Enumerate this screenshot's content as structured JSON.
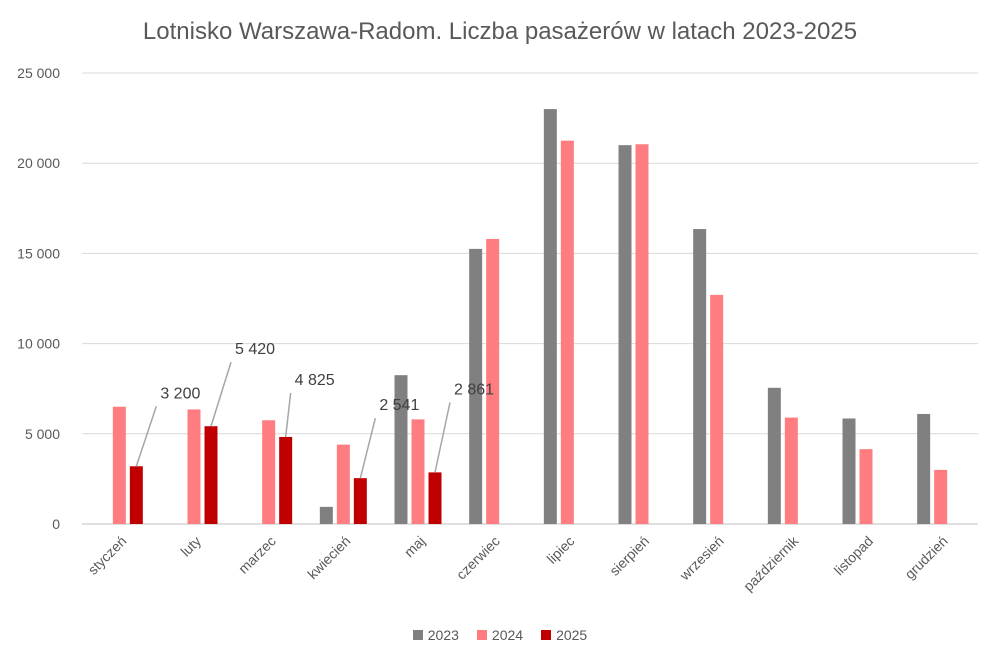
{
  "chart_data": {
    "type": "bar",
    "title": "Lotnisko Warszawa-Radom. Liczba pasażerów w latach 2023-2025",
    "xlabel": "",
    "ylabel": "",
    "ylim": [
      0,
      25000
    ],
    "yticks": [
      0,
      5000,
      10000,
      15000,
      20000,
      25000
    ],
    "ytick_labels": [
      "0",
      "5 000",
      "10 000",
      "15 000",
      "20 000",
      "25 000"
    ],
    "grid": true,
    "legend_position": "bottom",
    "categories": [
      "styczeń",
      "luty",
      "marzec",
      "kwiecień",
      "maj",
      "czerwiec",
      "lipiec",
      "sierpień",
      "wrzesień",
      "październik",
      "listopad",
      "grudzień"
    ],
    "series": [
      {
        "name": "2023",
        "color": "#808080",
        "values": [
          null,
          null,
          null,
          950,
          8250,
          15250,
          23000,
          21000,
          16350,
          7550,
          5850,
          6100
        ]
      },
      {
        "name": "2024",
        "color": "#ff7c80",
        "values": [
          6500,
          6350,
          5750,
          4400,
          5800,
          15800,
          21250,
          21050,
          12700,
          5900,
          4150,
          3000
        ]
      },
      {
        "name": "2025",
        "color": "#c00000",
        "values": [
          3200,
          5420,
          4825,
          2541,
          2861,
          null,
          null,
          null,
          null,
          null,
          null,
          null
        ]
      }
    ],
    "data_labels": [
      {
        "series": "2025",
        "category": "styczeń",
        "text": "3 200"
      },
      {
        "series": "2025",
        "category": "luty",
        "text": "5 420"
      },
      {
        "series": "2025",
        "category": "marzec",
        "text": "4 825"
      },
      {
        "series": "2025",
        "category": "kwiecień",
        "text": "2 541"
      },
      {
        "series": "2025",
        "category": "maj",
        "text": "2 861"
      }
    ]
  }
}
